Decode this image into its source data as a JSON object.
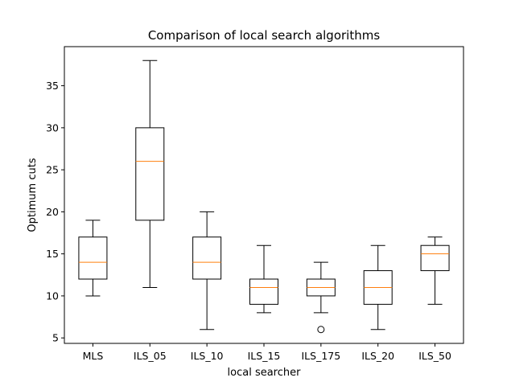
{
  "chart_data": {
    "type": "boxplot",
    "title": "Comparison of local search algorithms",
    "xlabel": "local searcher",
    "ylabel": "Optimum cuts",
    "ylim": [
      4.35,
      39.65
    ],
    "yticks": [
      5,
      10,
      15,
      20,
      25,
      30,
      35
    ],
    "categories": [
      "MLS",
      "ILS_05",
      "ILS_10",
      "ILS_15",
      "ILS_175",
      "ILS_20",
      "ILS_50"
    ],
    "boxes": [
      {
        "category": "MLS",
        "whisker_low": 10,
        "q1": 12,
        "median": 14,
        "q3": 17,
        "whisker_high": 19,
        "fliers": []
      },
      {
        "category": "ILS_05",
        "whisker_low": 11,
        "q1": 19,
        "median": 26,
        "q3": 30,
        "whisker_high": 38,
        "fliers": []
      },
      {
        "category": "ILS_10",
        "whisker_low": 6,
        "q1": 12,
        "median": 14,
        "q3": 17,
        "whisker_high": 20,
        "fliers": []
      },
      {
        "category": "ILS_15",
        "whisker_low": 8,
        "q1": 9,
        "median": 11,
        "q3": 12,
        "whisker_high": 16,
        "fliers": []
      },
      {
        "category": "ILS_175",
        "whisker_low": 8,
        "q1": 10,
        "median": 11,
        "q3": 12,
        "whisker_high": 14,
        "fliers": [
          6
        ]
      },
      {
        "category": "ILS_20",
        "whisker_low": 6,
        "q1": 9,
        "median": 11,
        "q3": 13,
        "whisker_high": 16,
        "fliers": []
      },
      {
        "category": "ILS_50",
        "whisker_low": 9,
        "q1": 13,
        "median": 15,
        "q3": 16,
        "whisker_high": 17,
        "fliers": []
      }
    ],
    "colors": {
      "box": "#000000",
      "median": "#ff7f0e",
      "flier": "#000000"
    },
    "grid": false,
    "legend": "none"
  }
}
